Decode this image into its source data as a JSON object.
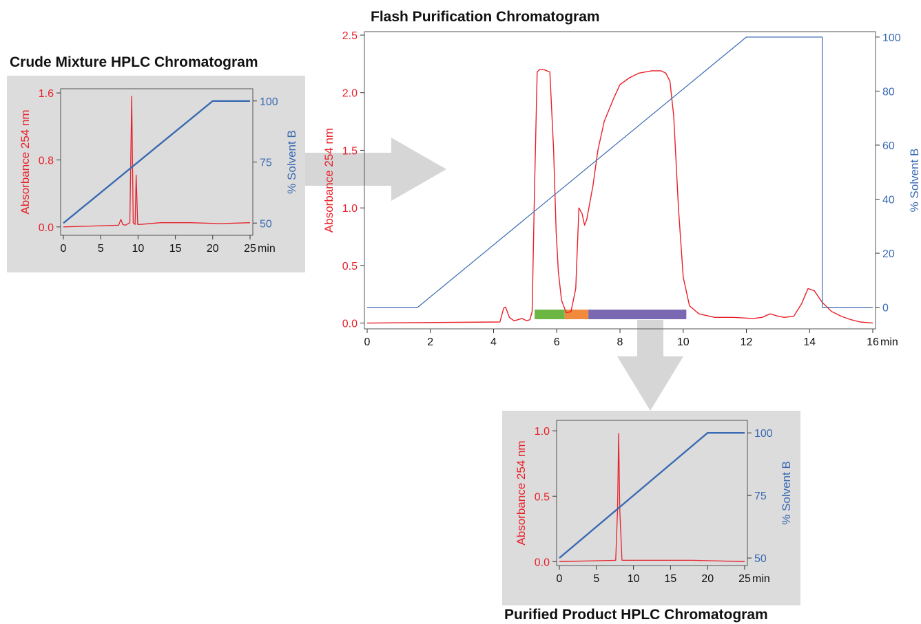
{
  "colors": {
    "absorbance": "#e8202a",
    "solvent": "#3a6ab2",
    "panel_bg": "#dcdcdc",
    "arrow": "#d6d6d6",
    "fraction_green": "#6cb644",
    "fraction_orange": "#f08a3c",
    "fraction_purple": "#7a68b2"
  },
  "chart_data": [
    {
      "id": "crude",
      "type": "line",
      "title": "Crude Mixture HPLC Chromatogram",
      "ylabel": "Absorbance 254 nm",
      "y2label": "% Solvent B",
      "x_unit": "min",
      "xlim": [
        0,
        25
      ],
      "ylim": [
        -0.1,
        1.65
      ],
      "y2lim": [
        45,
        105
      ],
      "x_ticks": [
        0,
        5,
        10,
        15,
        20,
        25
      ],
      "x_tick_labels": [
        "0",
        "5",
        "10",
        "15",
        "20",
        "25"
      ],
      "y_ticks": [
        0.0,
        0.8,
        1.6
      ],
      "y_tick_labels": [
        "0.0",
        "0.8",
        "1.6"
      ],
      "y2_ticks": [
        50,
        75,
        100
      ],
      "y2_tick_labels": [
        "50",
        "75",
        "100"
      ],
      "grid": false,
      "series": [
        {
          "axis": "left",
          "x": [
            0,
            7.4,
            7.7,
            7.95,
            8.3,
            8.9,
            9.15,
            9.35,
            9.6,
            9.75,
            9.95,
            10.3,
            13,
            17,
            21,
            25
          ],
          "y": [
            0.0,
            0.02,
            0.09,
            0.03,
            0.02,
            0.05,
            1.56,
            0.05,
            0.03,
            0.62,
            0.03,
            0.03,
            0.05,
            0.05,
            0.04,
            0.05
          ]
        },
        {
          "axis": "right",
          "x": [
            0,
            20,
            25
          ],
          "y": [
            50,
            100,
            100
          ]
        }
      ]
    },
    {
      "id": "flash",
      "type": "line",
      "title": "Flash Purification Chromatogram",
      "ylabel": "Absorbance 254 nm",
      "y2label": "% Solvent B",
      "x_unit": "min",
      "xlim": [
        0,
        16
      ],
      "ylim": [
        -0.05,
        2.53
      ],
      "y2lim": [
        -8,
        102
      ],
      "x_ticks": [
        0,
        2,
        4,
        6,
        8,
        10,
        12,
        14,
        16
      ],
      "x_tick_labels": [
        "0",
        "2",
        "4",
        "6",
        "8",
        "10",
        "12",
        "14",
        "16"
      ],
      "y_ticks": [
        0.0,
        0.5,
        1.0,
        1.5,
        2.0,
        2.5
      ],
      "y_tick_labels": [
        "0.0",
        "0.5",
        "1.0",
        "1.5",
        "2.0",
        "2.5"
      ],
      "y2_ticks": [
        0,
        20,
        40,
        60,
        80,
        100
      ],
      "y2_tick_labels": [
        "0",
        "20",
        "40",
        "60",
        "80",
        "100"
      ],
      "grid": false,
      "series": [
        {
          "axis": "left",
          "x": [
            0,
            4.2,
            4.32,
            4.38,
            4.5,
            4.65,
            4.9,
            5.05,
            5.15,
            5.22,
            5.3,
            5.38,
            5.45,
            5.6,
            5.78,
            5.9,
            5.98,
            6.05,
            6.15,
            6.3,
            6.45,
            6.6,
            6.7,
            6.8,
            6.88,
            6.95,
            7.05,
            7.15,
            7.3,
            7.5,
            7.8,
            8.0,
            8.3,
            8.6,
            9.0,
            9.3,
            9.45,
            9.58,
            9.7,
            9.85,
            10.0,
            10.2,
            10.5,
            11.0,
            11.6,
            12.2,
            12.5,
            12.75,
            13.0,
            13.2,
            13.5,
            13.75,
            13.95,
            14.15,
            14.4,
            14.7,
            15.0,
            15.3,
            15.6,
            16.0
          ],
          "y": [
            0.0,
            0.01,
            0.13,
            0.14,
            0.05,
            0.02,
            0.04,
            0.02,
            0.03,
            0.1,
            1.2,
            2.18,
            2.2,
            2.2,
            2.18,
            1.5,
            0.8,
            0.45,
            0.2,
            0.09,
            0.1,
            0.3,
            1.0,
            0.95,
            0.85,
            0.9,
            1.05,
            1.2,
            1.5,
            1.75,
            1.95,
            2.07,
            2.13,
            2.17,
            2.19,
            2.19,
            2.17,
            2.1,
            1.8,
            1.0,
            0.4,
            0.15,
            0.08,
            0.05,
            0.05,
            0.04,
            0.05,
            0.08,
            0.06,
            0.05,
            0.06,
            0.17,
            0.3,
            0.28,
            0.18,
            0.1,
            0.06,
            0.03,
            0.01,
            0.0
          ]
        },
        {
          "axis": "right",
          "x": [
            0,
            1.6,
            12,
            14.4,
            14.4,
            16
          ],
          "y": [
            0,
            0,
            100,
            100,
            0,
            0
          ]
        }
      ],
      "fractions": [
        {
          "start": 5.3,
          "end": 6.25,
          "color": "#6cb644"
        },
        {
          "start": 6.25,
          "end": 7.0,
          "color": "#f08a3c"
        },
        {
          "start": 7.0,
          "end": 10.1,
          "color": "#7a68b2"
        }
      ]
    },
    {
      "id": "purified",
      "type": "line",
      "title": "Purified Product HPLC Chromatogram",
      "ylabel": "Absorbance 254 nm",
      "y2label": "% Solvent B",
      "x_unit": "min",
      "xlim": [
        0,
        25
      ],
      "ylim": [
        -0.03,
        1.08
      ],
      "y2lim": [
        47,
        105
      ],
      "x_ticks": [
        0,
        5,
        10,
        15,
        20,
        25
      ],
      "x_tick_labels": [
        "0",
        "5",
        "10",
        "15",
        "20",
        "25"
      ],
      "y_ticks": [
        0.0,
        0.5,
        1.0
      ],
      "y_tick_labels": [
        "0.0",
        "0.5",
        "1.0"
      ],
      "y2_ticks": [
        50,
        75,
        100
      ],
      "y2_tick_labels": [
        "50",
        "75",
        "100"
      ],
      "grid": false,
      "series": [
        {
          "axis": "left",
          "x": [
            0,
            7.6,
            7.85,
            8.0,
            8.15,
            8.45,
            12,
            18,
            25
          ],
          "y": [
            0.0,
            0.01,
            0.4,
            0.98,
            0.4,
            0.01,
            0.01,
            0.01,
            0.0
          ]
        },
        {
          "axis": "right",
          "x": [
            0,
            20,
            25
          ],
          "y": [
            50,
            100,
            100
          ]
        }
      ]
    }
  ]
}
